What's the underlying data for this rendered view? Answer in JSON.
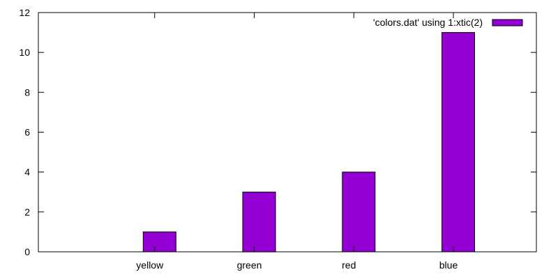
{
  "chart_data": {
    "type": "bar",
    "categories": [
      "yellow",
      "green",
      "red",
      "blue"
    ],
    "series": [
      {
        "name": "'colors.dat' using 1:xtic(2)",
        "values": [
          1,
          3,
          4,
          11
        ],
        "color": "#9400d3"
      }
    ],
    "y_ticks": [
      "0",
      "2",
      "4",
      "6",
      "8",
      "10",
      "12"
    ],
    "ylim": [
      0,
      12
    ],
    "grid": false,
    "legend_position": "top-right",
    "title": "",
    "xlabel": "",
    "ylabel": ""
  }
}
